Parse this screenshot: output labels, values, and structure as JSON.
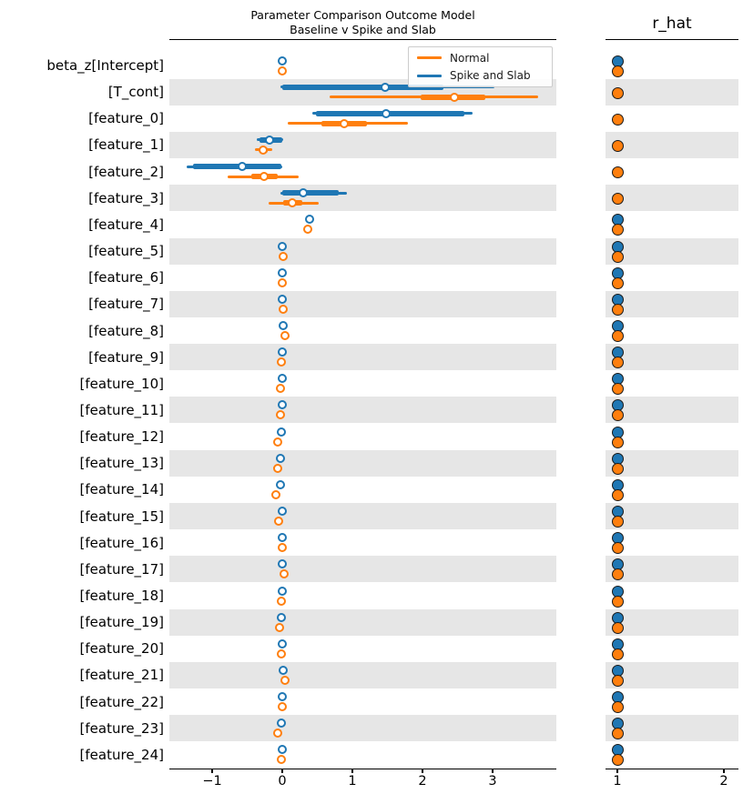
{
  "figure": {
    "title_line1": "Parameter Comparison Outcome Model",
    "title_line2": "Baseline v Spike and Slab",
    "rhat_title": "r_hat"
  },
  "legend": {
    "items": [
      {
        "label": "Normal",
        "color": "#ff7f0e",
        "series": "normal"
      },
      {
        "label": "Spike and Slab",
        "color": "#1f77b4",
        "series": "spike"
      }
    ]
  },
  "chart_data": {
    "type": "forest",
    "title": "Parameter Comparison Outcome Model\nBaseline v Spike and Slab",
    "subtitle_right_panel": "r_hat",
    "legend": [
      "Normal",
      "Spike and Slab"
    ],
    "colors": {
      "normal": "#ff7f0e",
      "spike": "#1f77b4",
      "band": "#e6e6e6",
      "median_face": "#ffffff"
    },
    "panels": [
      {
        "name": "estimates",
        "xticks": [
          -1,
          0,
          1,
          2,
          3
        ],
        "xlim": [
          -1.62,
          3.92
        ]
      },
      {
        "name": "r_hat",
        "xticks": [
          1,
          2
        ],
        "xlim": [
          0.89,
          2.15
        ]
      }
    ],
    "grid": false,
    "legend_position": "upper right of left panel",
    "rows": [
      {
        "label": "beta_z[Intercept]",
        "shaded": false,
        "spike": {
          "lo": 0.0,
          "q1": 0.0,
          "med": 0.0,
          "q3": 0.0,
          "hi": 0.0
        },
        "normal": {
          "lo": -0.03,
          "q1": -0.01,
          "med": 0.0,
          "q3": 0.01,
          "hi": 0.03
        },
        "rhat": {
          "spike": 1.0,
          "normal": 1.0
        }
      },
      {
        "label": "[T_cont]",
        "shaded": true,
        "spike": {
          "lo": -0.03,
          "q1": 0.0,
          "med": 1.47,
          "q3": 2.3,
          "hi": 3.02
        },
        "normal": {
          "lo": 0.68,
          "q1": 1.97,
          "med": 2.45,
          "q3": 2.9,
          "hi": 3.65
        },
        "rhat": {
          "spike": null,
          "normal": 1.0
        }
      },
      {
        "label": "[feature_0]",
        "shaded": false,
        "spike": {
          "lo": 0.43,
          "q1": 0.48,
          "med": 1.48,
          "q3": 2.6,
          "hi": 2.71
        },
        "normal": {
          "lo": 0.08,
          "q1": 0.56,
          "med": 0.88,
          "q3": 1.21,
          "hi": 1.79
        },
        "rhat": {
          "spike": null,
          "normal": 1.0
        }
      },
      {
        "label": "[feature_1]",
        "shaded": true,
        "spike": {
          "lo": -0.36,
          "q1": -0.33,
          "med": -0.18,
          "q3": 0.0,
          "hi": 0.01
        },
        "normal": {
          "lo": -0.39,
          "q1": -0.33,
          "med": -0.27,
          "q3": -0.21,
          "hi": -0.14
        },
        "rhat": {
          "spike": null,
          "normal": 1.0
        }
      },
      {
        "label": "[feature_2]",
        "shaded": false,
        "spike": {
          "lo": -1.36,
          "q1": -1.27,
          "med": -0.57,
          "q3": -0.01,
          "hi": 0.0
        },
        "normal": {
          "lo": -0.78,
          "q1": -0.44,
          "med": -0.26,
          "q3": -0.06,
          "hi": 0.23
        },
        "rhat": {
          "spike": null,
          "normal": 1.0
        }
      },
      {
        "label": "[feature_3]",
        "shaded": true,
        "spike": {
          "lo": -0.03,
          "q1": 0.0,
          "med": 0.3,
          "q3": 0.81,
          "hi": 0.92
        },
        "normal": {
          "lo": -0.19,
          "q1": 0.01,
          "med": 0.14,
          "q3": 0.28,
          "hi": 0.52
        },
        "rhat": {
          "spike": null,
          "normal": 1.0
        }
      },
      {
        "label": "[feature_4]",
        "shaded": false,
        "spike": {
          "lo": 0.39,
          "q1": 0.39,
          "med": 0.39,
          "q3": 0.39,
          "hi": 0.39
        },
        "normal": {
          "lo": 0.31,
          "q1": 0.34,
          "med": 0.36,
          "q3": 0.38,
          "hi": 0.41
        },
        "rhat": {
          "spike": 1.0,
          "normal": 1.0
        }
      },
      {
        "label": "[feature_5]",
        "shaded": true,
        "spike": {
          "lo": 0.0,
          "q1": 0.0,
          "med": 0.0,
          "q3": 0.0,
          "hi": 0.0
        },
        "normal": {
          "lo": -0.02,
          "q1": 0.0,
          "med": 0.01,
          "q3": 0.03,
          "hi": 0.06
        },
        "rhat": {
          "spike": 1.0,
          "normal": 1.0
        }
      },
      {
        "label": "[feature_6]",
        "shaded": false,
        "spike": {
          "lo": 0.0,
          "q1": 0.0,
          "med": 0.0,
          "q3": 0.0,
          "hi": 0.0
        },
        "normal": {
          "lo": -0.03,
          "q1": -0.01,
          "med": 0.0,
          "q3": 0.01,
          "hi": 0.03
        },
        "rhat": {
          "spike": 1.0,
          "normal": 1.0
        }
      },
      {
        "label": "[feature_7]",
        "shaded": true,
        "spike": {
          "lo": 0.0,
          "q1": 0.0,
          "med": 0.0,
          "q3": 0.0,
          "hi": 0.0
        },
        "normal": {
          "lo": -0.02,
          "q1": 0.0,
          "med": 0.01,
          "q3": 0.03,
          "hi": 0.07
        },
        "rhat": {
          "spike": 1.0,
          "normal": 1.0
        }
      },
      {
        "label": "[feature_8]",
        "shaded": false,
        "spike": {
          "lo": 0.01,
          "q1": 0.01,
          "med": 0.01,
          "q3": 0.01,
          "hi": 0.01
        },
        "normal": {
          "lo": 0.0,
          "q1": 0.02,
          "med": 0.04,
          "q3": 0.06,
          "hi": 0.1
        },
        "rhat": {
          "spike": 1.0,
          "normal": 1.0
        }
      },
      {
        "label": "[feature_9]",
        "shaded": true,
        "spike": {
          "lo": 0.0,
          "q1": 0.0,
          "med": 0.0,
          "q3": 0.0,
          "hi": 0.0
        },
        "normal": {
          "lo": -0.05,
          "q1": -0.02,
          "med": -0.01,
          "q3": 0.01,
          "hi": 0.04
        },
        "rhat": {
          "spike": 1.0,
          "normal": 1.0
        }
      },
      {
        "label": "[feature_10]",
        "shaded": false,
        "spike": {
          "lo": 0.0,
          "q1": 0.0,
          "med": 0.0,
          "q3": 0.0,
          "hi": 0.0
        },
        "normal": {
          "lo": -0.07,
          "q1": -0.04,
          "med": -0.03,
          "q3": -0.01,
          "hi": 0.01
        },
        "rhat": {
          "spike": 1.0,
          "normal": 1.0
        }
      },
      {
        "label": "[feature_11]",
        "shaded": true,
        "spike": {
          "lo": 0.0,
          "q1": 0.0,
          "med": 0.0,
          "q3": 0.0,
          "hi": 0.0
        },
        "normal": {
          "lo": -0.06,
          "q1": -0.04,
          "med": -0.03,
          "q3": -0.01,
          "hi": 0.01
        },
        "rhat": {
          "spike": 1.0,
          "normal": 1.0
        }
      },
      {
        "label": "[feature_12]",
        "shaded": false,
        "spike": {
          "lo": -0.01,
          "q1": -0.01,
          "med": -0.01,
          "q3": -0.01,
          "hi": -0.01
        },
        "normal": {
          "lo": -0.12,
          "q1": -0.08,
          "med": -0.06,
          "q3": -0.04,
          "hi": -0.02
        },
        "rhat": {
          "spike": 1.0,
          "normal": 1.0
        }
      },
      {
        "label": "[feature_13]",
        "shaded": true,
        "spike": {
          "lo": -0.03,
          "q1": -0.03,
          "med": -0.03,
          "q3": -0.03,
          "hi": -0.03
        },
        "normal": {
          "lo": -0.13,
          "q1": -0.09,
          "med": -0.07,
          "q3": -0.05,
          "hi": -0.02
        },
        "rhat": {
          "spike": 1.0,
          "normal": 1.0
        }
      },
      {
        "label": "[feature_14]",
        "shaded": false,
        "spike": {
          "lo": -0.03,
          "q1": -0.03,
          "med": -0.03,
          "q3": -0.03,
          "hi": -0.03
        },
        "normal": {
          "lo": -0.16,
          "q1": -0.11,
          "med": -0.09,
          "q3": -0.06,
          "hi": -0.03
        },
        "rhat": {
          "spike": 1.0,
          "normal": 1.0
        }
      },
      {
        "label": "[feature_15]",
        "shaded": true,
        "spike": {
          "lo": 0.0,
          "q1": 0.0,
          "med": 0.0,
          "q3": 0.0,
          "hi": 0.0
        },
        "normal": {
          "lo": -0.1,
          "q1": -0.07,
          "med": -0.05,
          "q3": -0.03,
          "hi": 0.0
        },
        "rhat": {
          "spike": 1.0,
          "normal": 1.0
        }
      },
      {
        "label": "[feature_16]",
        "shaded": false,
        "spike": {
          "lo": 0.0,
          "q1": 0.0,
          "med": 0.0,
          "q3": 0.0,
          "hi": 0.0
        },
        "normal": {
          "lo": -0.03,
          "q1": -0.01,
          "med": 0.0,
          "q3": 0.01,
          "hi": 0.03
        },
        "rhat": {
          "spike": 1.0,
          "normal": 1.0
        }
      },
      {
        "label": "[feature_17]",
        "shaded": true,
        "spike": {
          "lo": 0.0,
          "q1": 0.0,
          "med": 0.0,
          "q3": 0.0,
          "hi": 0.0
        },
        "normal": {
          "lo": 0.0,
          "q1": 0.01,
          "med": 0.03,
          "q3": 0.04,
          "hi": 0.07
        },
        "rhat": {
          "spike": 1.0,
          "normal": 1.0
        }
      },
      {
        "label": "[feature_18]",
        "shaded": false,
        "spike": {
          "lo": 0.0,
          "q1": 0.0,
          "med": 0.0,
          "q3": 0.0,
          "hi": 0.0
        },
        "normal": {
          "lo": -0.04,
          "q1": -0.02,
          "med": -0.01,
          "q3": 0.01,
          "hi": 0.03
        },
        "rhat": {
          "spike": 1.0,
          "normal": 1.0
        }
      },
      {
        "label": "[feature_19]",
        "shaded": true,
        "spike": {
          "lo": -0.01,
          "q1": -0.01,
          "med": -0.01,
          "q3": -0.01,
          "hi": -0.01
        },
        "normal": {
          "lo": -0.08,
          "q1": -0.05,
          "med": -0.04,
          "q3": -0.02,
          "hi": 0.0
        },
        "rhat": {
          "spike": 1.0,
          "normal": 1.0
        }
      },
      {
        "label": "[feature_20]",
        "shaded": false,
        "spike": {
          "lo": 0.0,
          "q1": 0.0,
          "med": 0.0,
          "q3": 0.0,
          "hi": 0.0
        },
        "normal": {
          "lo": -0.04,
          "q1": -0.02,
          "med": -0.01,
          "q3": 0.0,
          "hi": 0.02
        },
        "rhat": {
          "spike": 1.0,
          "normal": 1.0
        }
      },
      {
        "label": "[feature_21]",
        "shaded": true,
        "spike": {
          "lo": 0.01,
          "q1": 0.01,
          "med": 0.01,
          "q3": 0.01,
          "hi": 0.01
        },
        "normal": {
          "lo": 0.0,
          "q1": 0.02,
          "med": 0.04,
          "q3": 0.07,
          "hi": 0.1
        },
        "rhat": {
          "spike": 1.0,
          "normal": 1.0
        }
      },
      {
        "label": "[feature_22]",
        "shaded": false,
        "spike": {
          "lo": 0.0,
          "q1": 0.0,
          "med": 0.0,
          "q3": 0.0,
          "hi": 0.0
        },
        "normal": {
          "lo": -0.03,
          "q1": -0.01,
          "med": 0.0,
          "q3": 0.01,
          "hi": 0.03
        },
        "rhat": {
          "spike": 1.0,
          "normal": 1.0
        }
      },
      {
        "label": "[feature_23]",
        "shaded": true,
        "spike": {
          "lo": -0.01,
          "q1": -0.01,
          "med": -0.01,
          "q3": -0.01,
          "hi": -0.01
        },
        "normal": {
          "lo": -0.12,
          "q1": -0.08,
          "med": -0.06,
          "q3": -0.03,
          "hi": -0.01
        },
        "rhat": {
          "spike": 1.0,
          "normal": 1.0
        }
      },
      {
        "label": "[feature_24]",
        "shaded": false,
        "spike": {
          "lo": 0.0,
          "q1": 0.0,
          "med": 0.0,
          "q3": 0.0,
          "hi": 0.0
        },
        "normal": {
          "lo": -0.05,
          "q1": -0.02,
          "med": -0.01,
          "q3": 0.01,
          "hi": 0.02
        },
        "rhat": {
          "spike": 1.0,
          "normal": 1.0
        }
      }
    ]
  }
}
